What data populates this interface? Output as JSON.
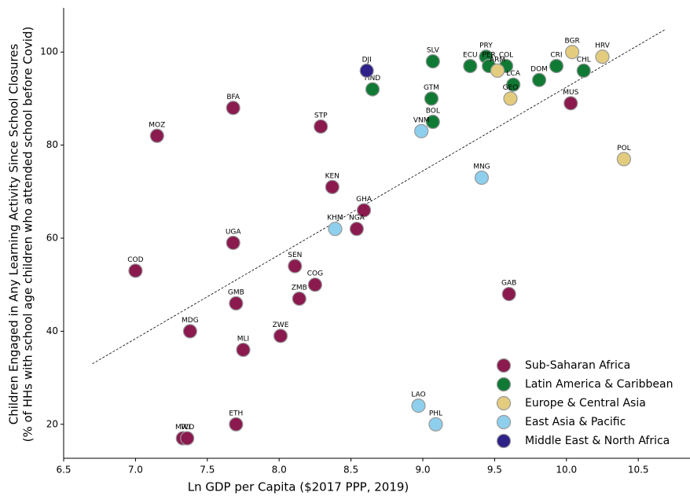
{
  "chart_data": {
    "type": "scatter",
    "x_label": "Ln GDP per Capita ($2017 PPP, 2019)",
    "y_label": [
      "Children Engaged in Any Learning Activity Since School Closures",
      "(% of HHs with school age children who attended school before Covid)"
    ],
    "xlim": [
      6.5,
      10.86
    ],
    "ylim": [
      12.7,
      109.5
    ],
    "xticks": [
      {
        "value": 6.5,
        "label": "6.5"
      },
      {
        "value": 7,
        "label": "7.0"
      },
      {
        "value": 7.5,
        "label": "7.5"
      },
      {
        "value": 8,
        "label": "8.0"
      },
      {
        "value": 8.5,
        "label": "8.5"
      },
      {
        "value": 9,
        "label": "9.0"
      },
      {
        "value": 9.5,
        "label": "9.5"
      },
      {
        "value": 10,
        "label": "10.0"
      },
      {
        "value": 10.5,
        "label": "10.5"
      }
    ],
    "yticks": [
      20,
      40,
      60,
      80,
      100
    ],
    "legend_position": "lower right",
    "trendline": {
      "x": [
        6.7,
        10.69
      ],
      "y": [
        33,
        104.9
      ]
    },
    "series": [
      {
        "name": "Sub-Saharan Africa",
        "color": "#8b1a4f",
        "labels": [
          "MOZ",
          "BFA",
          "STP",
          "KEN",
          "GHA",
          "NGA",
          "UGA",
          "COD",
          "SEN",
          "COG",
          "ZMB",
          "GMB",
          "MDG",
          "ZWE",
          "MLI",
          "ETH",
          "MWI",
          "TCD",
          "MUS",
          "GAB"
        ],
        "x": [
          7.15,
          7.68,
          8.29,
          8.37,
          8.59,
          8.54,
          7.68,
          7.0,
          8.11,
          8.25,
          8.14,
          7.7,
          7.38,
          8.01,
          7.75,
          7.7,
          7.33,
          7.36,
          10.03,
          9.6
        ],
        "y": [
          82,
          88,
          84,
          71,
          66,
          62,
          59,
          53,
          54,
          50,
          47,
          46,
          40,
          39,
          36,
          20,
          17,
          17,
          89,
          48
        ]
      },
      {
        "name": "Latin America & Caribbean",
        "color": "#107a35",
        "labels": [
          "SLV",
          "HND",
          "GTM",
          "BOL",
          "ECU",
          "PRY",
          "PER",
          "COL",
          "LCA",
          "DOM",
          "CRI",
          "CHL"
        ],
        "x": [
          9.07,
          8.65,
          9.06,
          9.07,
          9.33,
          9.44,
          9.46,
          9.58,
          9.63,
          9.81,
          9.93,
          10.12
        ],
        "y": [
          98,
          92,
          90,
          85,
          97,
          99,
          97,
          97,
          93,
          94,
          97,
          96
        ]
      },
      {
        "name": "Europe & Central Asia",
        "color": "#e3cc7e",
        "labels": [
          "BGR",
          "HRV",
          "ARM",
          "GEO",
          "POL"
        ],
        "x": [
          10.04,
          10.25,
          9.52,
          9.61,
          10.4
        ],
        "y": [
          100,
          99,
          96,
          90,
          77
        ]
      },
      {
        "name": "East Asia & Pacific",
        "color": "#8dcfec",
        "labels": [
          "VNM",
          "MNG",
          "KHM",
          "LAO",
          "PHL"
        ],
        "x": [
          8.99,
          9.41,
          8.39,
          8.97,
          9.09
        ],
        "y": [
          83,
          73,
          62,
          24,
          20
        ]
      },
      {
        "name": "Middle East & North Africa",
        "color": "#2e2188",
        "labels": [
          "DJI"
        ],
        "x": [
          8.61
        ],
        "y": [
          96
        ]
      }
    ]
  }
}
